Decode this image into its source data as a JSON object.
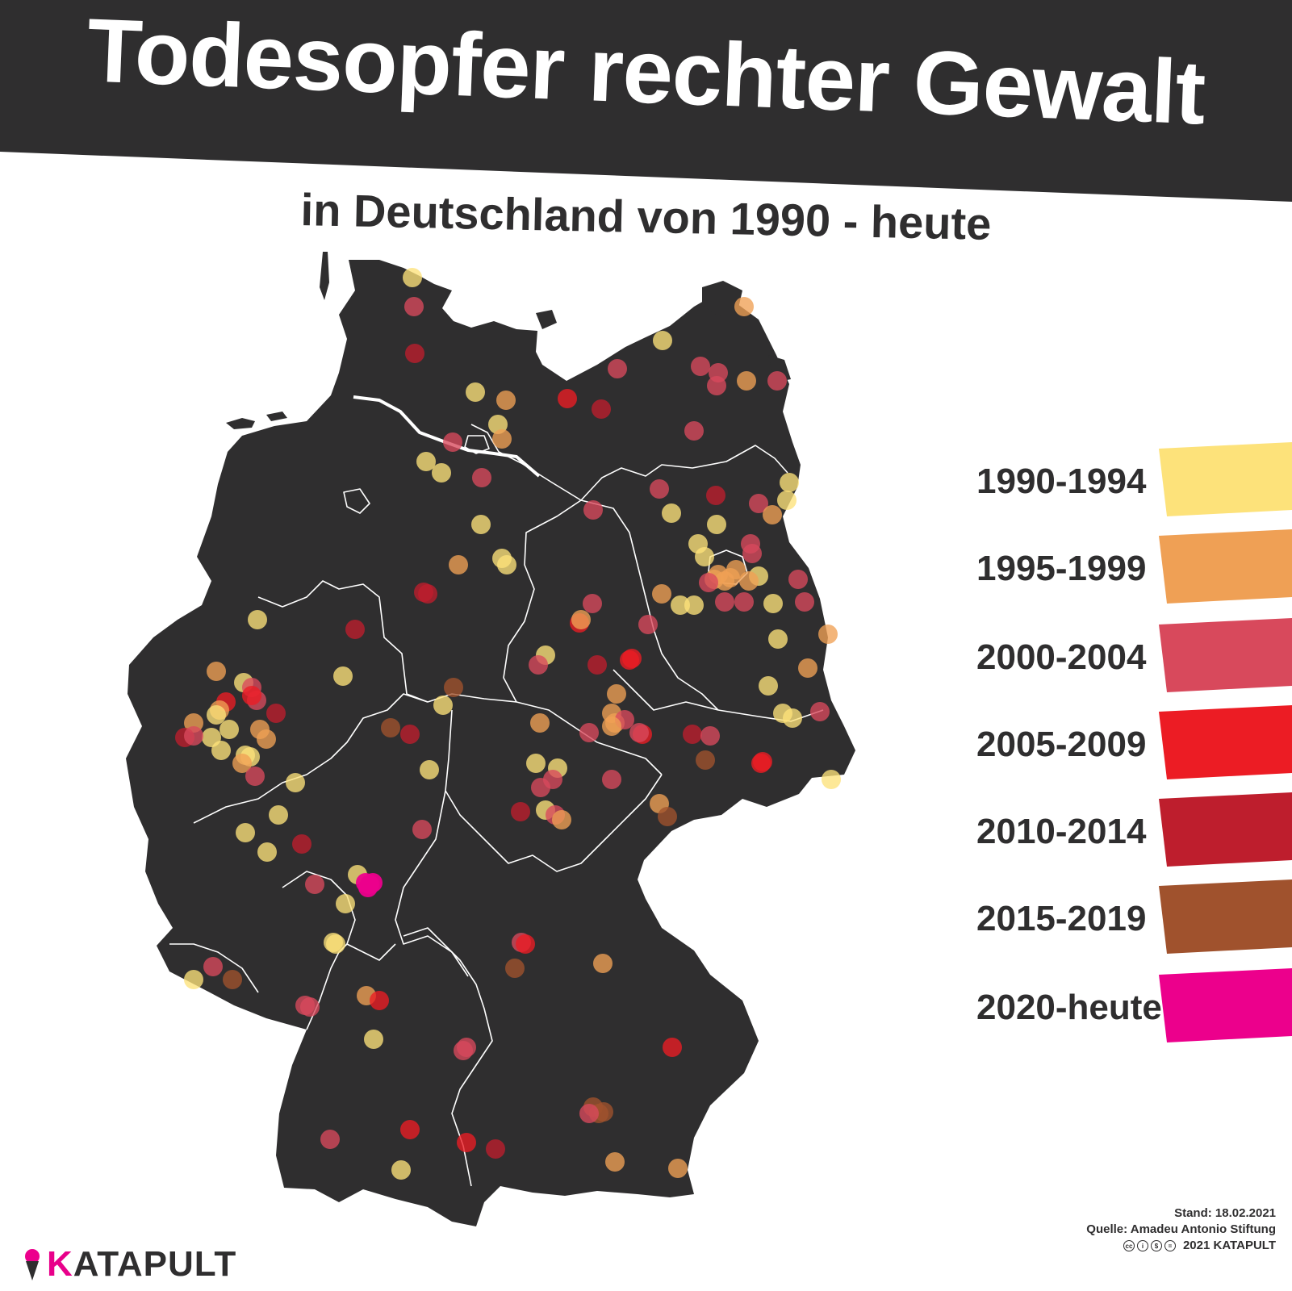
{
  "title": "Todesopfer rechter Gewalt",
  "subtitle": "in Deutschland von 1990 - heute",
  "legend": [
    {
      "label": "1990-1994",
      "color": "#fde27a"
    },
    {
      "label": "1995-1999",
      "color": "#efa055"
    },
    {
      "label": "2000-2004",
      "color": "#d8495c"
    },
    {
      "label": "2005-2009",
      "color": "#ec1c24"
    },
    {
      "label": "2010-2014",
      "color": "#be1e2d"
    },
    {
      "label": "2015-2019",
      "color": "#a0522d"
    },
    {
      "label": "2020-heute",
      "color": "#ec008c"
    }
  ],
  "footer": {
    "stand": "Stand: 18.02.2021",
    "quelle": "Quelle: Amadeu Antonio Stiftung",
    "copyright": "2021 KATAPULT",
    "cc_icons": [
      "cc-icon",
      "by-icon",
      "nc-icon",
      "nd-icon"
    ]
  },
  "logo": {
    "first": "K",
    "rest": "ATAPULT",
    "icon": "ice-cream-icon",
    "color": "#ec008c"
  },
  "map": {
    "land_color": "#2f2e2f",
    "border_color": "#ffffff",
    "banner_color": "#2f2e2f"
  }
}
